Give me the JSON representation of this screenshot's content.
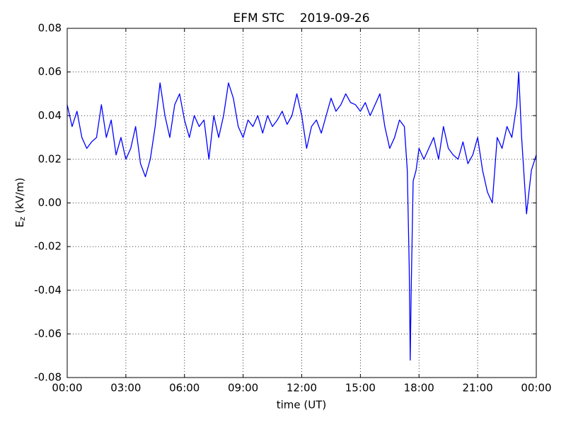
{
  "chart_data": {
    "type": "line",
    "title": "EFM STC    2019-09-26",
    "x_label": "time (UT)",
    "y_label": {
      "base": "E",
      "subscript": "z",
      "rest": " (kV/m)"
    },
    "color": "#0000ff",
    "grid": true,
    "xlim": [
      0,
      24
    ],
    "xticks": [
      {
        "value": 0,
        "label": "00:00"
      },
      {
        "value": 3,
        "label": "03:00"
      },
      {
        "value": 6,
        "label": "06:00"
      },
      {
        "value": 9,
        "label": "09:00"
      },
      {
        "value": 12,
        "label": "12:00"
      },
      {
        "value": 15,
        "label": "15:00"
      },
      {
        "value": 18,
        "label": "18:00"
      },
      {
        "value": 21,
        "label": "21:00"
      },
      {
        "value": 24,
        "label": "00:00"
      }
    ],
    "ylim": [
      -0.08,
      0.08
    ],
    "yticks": [
      -0.08,
      -0.06,
      -0.04,
      -0.02,
      {
        "value": 0,
        "label": "0.00"
      },
      0.02,
      0.04,
      0.06,
      0.08
    ],
    "x": [
      0,
      0.25,
      0.5,
      0.75,
      1,
      1.25,
      1.5,
      1.75,
      2,
      2.25,
      2.5,
      2.75,
      3,
      3.25,
      3.5,
      3.75,
      4,
      4.25,
      4.5,
      4.75,
      5,
      5.25,
      5.5,
      5.75,
      6,
      6.25,
      6.5,
      6.75,
      7,
      7.25,
      7.5,
      7.75,
      8,
      8.25,
      8.5,
      8.75,
      9,
      9.25,
      9.5,
      9.75,
      10,
      10.25,
      10.5,
      10.75,
      11,
      11.25,
      11.5,
      11.75,
      12,
      12.25,
      12.5,
      12.75,
      13,
      13.25,
      13.5,
      13.75,
      14,
      14.25,
      14.5,
      14.75,
      15,
      15.25,
      15.5,
      15.75,
      16,
      16.25,
      16.5,
      16.75,
      17,
      17.25,
      17.4,
      17.5,
      17.55,
      17.6,
      17.7,
      17.85,
      18,
      18.25,
      18.5,
      18.75,
      19,
      19.25,
      19.5,
      19.75,
      20,
      20.25,
      20.5,
      20.75,
      21,
      21.25,
      21.5,
      21.75,
      22,
      22.25,
      22.5,
      22.75,
      23,
      23.1,
      23.25,
      23.5,
      23.75,
      24
    ],
    "values": [
      0.045,
      0.035,
      0.042,
      0.03,
      0.025,
      0.028,
      0.03,
      0.045,
      0.03,
      0.038,
      0.022,
      0.03,
      0.02,
      0.025,
      0.035,
      0.018,
      0.012,
      0.02,
      0.035,
      0.055,
      0.04,
      0.03,
      0.045,
      0.05,
      0.038,
      0.03,
      0.04,
      0.035,
      0.038,
      0.02,
      0.04,
      0.03,
      0.04,
      0.055,
      0.048,
      0.035,
      0.03,
      0.038,
      0.035,
      0.04,
      0.032,
      0.04,
      0.035,
      0.038,
      0.042,
      0.036,
      0.04,
      0.05,
      0.04,
      0.025,
      0.035,
      0.038,
      0.032,
      0.04,
      0.048,
      0.042,
      0.045,
      0.05,
      0.046,
      0.045,
      0.042,
      0.046,
      0.04,
      0.045,
      0.05,
      0.035,
      0.025,
      0.03,
      0.038,
      0.035,
      0.015,
      -0.03,
      -0.072,
      -0.04,
      0.01,
      0.015,
      0.025,
      0.02,
      0.025,
      0.03,
      0.02,
      0.035,
      0.025,
      0.022,
      0.02,
      0.028,
      0.018,
      0.022,
      0.03,
      0.015,
      0.005,
      0,
      0.03,
      0.025,
      0.035,
      0.03,
      0.045,
      0.06,
      0.03,
      -0.005,
      0.015,
      0.022
    ]
  }
}
